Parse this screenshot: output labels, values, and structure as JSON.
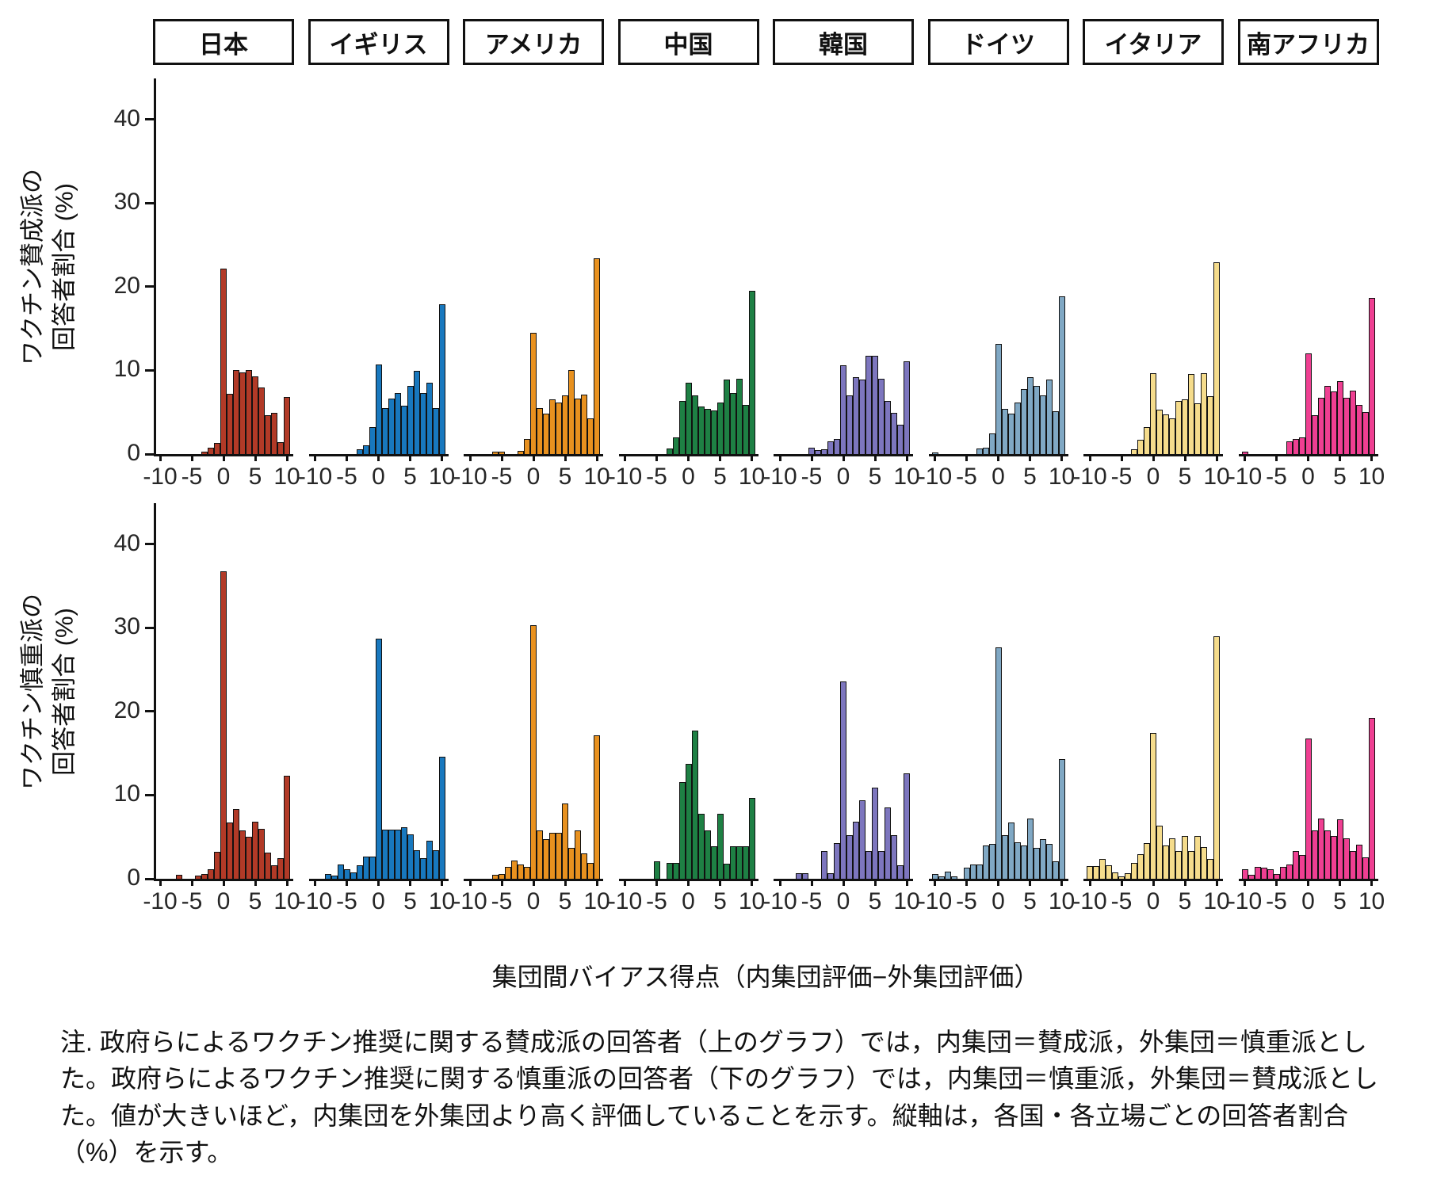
{
  "figure": {
    "y_axis_titles": [
      {
        "line1": "ワクチン賛成派の",
        "line2": "回答者割合 (%)"
      },
      {
        "line1": "ワクチン慎重派の",
        "line2": "回答者割合 (%)"
      }
    ],
    "x_axis_title": "集団間バイアス得点（内集団評価−外集団評価）",
    "note": "注. 政府らによるワクチン推奨に関する賛成派の回答者（上のグラフ）では，内集団＝賛成派，外集団＝慎重派とした。政府らによるワクチン推奨に関する慎重派の回答者（下のグラフ）では，内集団＝慎重派，外集団＝賛成派とした。値が大きいほど，内集団を外集団より高く評価していることを示す。縦軸は，各国・各立場ごとの回答者割合（%）を示す。"
  },
  "chart_data": {
    "type": "bar",
    "subtype": "faceted-histogram",
    "x_values": [
      -10,
      -9,
      -8,
      -7,
      -6,
      -5,
      -4,
      -3,
      -2,
      -1,
      0,
      1,
      2,
      3,
      4,
      5,
      6,
      7,
      8,
      9,
      10
    ],
    "x_ticks": [
      -10,
      -5,
      0,
      5,
      10
    ],
    "y_ticks": [
      0,
      10,
      20,
      30,
      40
    ],
    "ylim": [
      0,
      44.7
    ],
    "grid": false,
    "legend": "none",
    "facet_columns": [
      {
        "label": "日本",
        "color": "#B23A27"
      },
      {
        "label": "イギリス",
        "color": "#1878BE"
      },
      {
        "label": "アメリカ",
        "color": "#E8911F"
      },
      {
        "label": "中国",
        "color": "#1E8044"
      },
      {
        "label": "韓国",
        "color": "#7D76BE"
      },
      {
        "label": "ドイツ",
        "color": "#80A8C4"
      },
      {
        "label": "イタリア",
        "color": "#F5DC8C"
      },
      {
        "label": "南アフリカ",
        "color": "#EF3F92"
      }
    ],
    "rows": [
      {
        "name": "ワクチン賛成派",
        "ylabel": "ワクチン賛成派の回答者割合 (%)",
        "series": [
          {
            "country": "日本",
            "values": [
              0,
              0,
              0,
              0,
              0,
              0,
              0,
              0.3,
              0.8,
              1.3,
              22.2,
              7.2,
              10,
              9.8,
              10,
              9.3,
              8,
              4.6,
              4.9,
              1.4,
              6.8
            ]
          },
          {
            "country": "イギリス",
            "values": [
              0,
              0,
              0,
              0,
              0,
              0,
              0,
              0.6,
              1.0,
              3.2,
              10.7,
              5.5,
              6.6,
              7.3,
              5.8,
              8.1,
              9.9,
              7.3,
              8.5,
              5.5,
              17.9
            ]
          },
          {
            "country": "アメリカ",
            "values": [
              0,
              0,
              0,
              0,
              0.3,
              0.3,
              0,
              0,
              0.4,
              1.8,
              14.5,
              5.5,
              4.8,
              6.5,
              6.2,
              7.0,
              10.0,
              6.6,
              7.1,
              4.3,
              23.4
            ]
          },
          {
            "country": "中国",
            "values": [
              0,
              0,
              0,
              0,
              0,
              0,
              0,
              0.7,
              2.0,
              6.3,
              8.5,
              7.0,
              5.7,
              5.4,
              5.2,
              6.2,
              8.9,
              7.3,
              9.0,
              5.9,
              19.5
            ]
          },
          {
            "country": "韓国",
            "values": [
              0,
              0,
              0,
              0,
              0,
              0.8,
              0.5,
              0.6,
              1.5,
              1.8,
              10.6,
              7.0,
              9.2,
              8.9,
              11.7,
              11.7,
              9.0,
              6.3,
              4.9,
              3.5,
              11.1
            ]
          },
          {
            "country": "ドイツ",
            "values": [
              0.2,
              0,
              0,
              0,
              0,
              0,
              0,
              0.7,
              0.8,
              2.5,
              13.2,
              5.4,
              4.8,
              6.2,
              7.8,
              9.2,
              8.1,
              7.0,
              8.9,
              5.1,
              18.8
            ]
          },
          {
            "country": "イタリア",
            "values": [
              0,
              0,
              0,
              0,
              0,
              0,
              0,
              0.6,
              1.7,
              3.2,
              9.7,
              5.3,
              4.7,
              4.3,
              6.3,
              6.5,
              9.6,
              6.1,
              9.7,
              6.9,
              22.9
            ]
          },
          {
            "country": "南アフリカ",
            "values": [
              0.3,
              0,
              0,
              0,
              0,
              0,
              0,
              1.5,
              1.8,
              2.0,
              12.0,
              4.6,
              6.7,
              8.1,
              7.5,
              8.7,
              6.7,
              7.6,
              5.9,
              5.0,
              18.7
            ]
          }
        ]
      },
      {
        "name": "ワクチン慎重派",
        "ylabel": "ワクチン慎重派の回答者割合 (%)",
        "series": [
          {
            "country": "日本",
            "values": [
              0,
              0,
              0,
              0.5,
              0,
              0,
              0.4,
              0.6,
              1.1,
              3.2,
              36.7,
              6.7,
              8.3,
              5.8,
              5.0,
              6.8,
              6.0,
              3.1,
              1.6,
              2.5,
              12.3
            ]
          },
          {
            "country": "イギリス",
            "values": [
              0,
              0,
              0.6,
              0.4,
              1.7,
              1.1,
              0.8,
              1.6,
              2.7,
              2.7,
              28.7,
              5.9,
              5.9,
              5.9,
              6.2,
              5.3,
              3.4,
              2.5,
              4.5,
              3.4,
              14.6
            ]
          },
          {
            "country": "アメリカ",
            "values": [
              0,
              0,
              0,
              0,
              0.5,
              0.6,
              1.4,
              2.2,
              1.7,
              1.4,
              30.3,
              5.8,
              4.7,
              5.5,
              5.5,
              9.0,
              3.7,
              5.8,
              3.0,
              1.9,
              17.1
            ]
          },
          {
            "country": "中国",
            "values": [
              0,
              0,
              0,
              0,
              0,
              2.1,
              0,
              1.9,
              1.9,
              11.6,
              13.7,
              17.7,
              7.8,
              5.8,
              3.9,
              7.8,
              1.8,
              3.9,
              3.9,
              3.9,
              9.7
            ]
          },
          {
            "country": "韓国",
            "values": [
              0,
              0,
              0,
              0.7,
              0.7,
              0,
              0,
              3.3,
              0.7,
              4.3,
              23.6,
              5.2,
              6.8,
              9.4,
              3.3,
              10.9,
              3.3,
              8.5,
              5.2,
              1.6,
              12.6
            ]
          },
          {
            "country": "ドイツ",
            "values": [
              0.6,
              0.3,
              0.9,
              0.3,
              0,
              1.3,
              1.7,
              1.7,
              4.0,
              4.2,
              27.7,
              5.2,
              6.7,
              4.4,
              4.0,
              7.2,
              3.7,
              4.7,
              4.2,
              2.1,
              14.3
            ]
          },
          {
            "country": "イタリア",
            "values": [
              1.5,
              1.5,
              2.4,
              1.6,
              0.8,
              0.3,
              0.7,
              1.9,
              2.9,
              4.3,
              17.4,
              6.3,
              4.0,
              4.8,
              3.3,
              5.1,
              3.3,
              5.1,
              3.8,
              2.4,
              29.0
            ]
          },
          {
            "country": "南アフリカ",
            "values": [
              1.1,
              0.5,
              1.4,
              1.3,
              1.1,
              0.6,
              1.4,
              1.7,
              3.3,
              2.8,
              16.8,
              5.8,
              7.2,
              5.8,
              5.1,
              7.1,
              4.8,
              3.3,
              4.1,
              2.6,
              19.2
            ]
          }
        ]
      }
    ]
  }
}
